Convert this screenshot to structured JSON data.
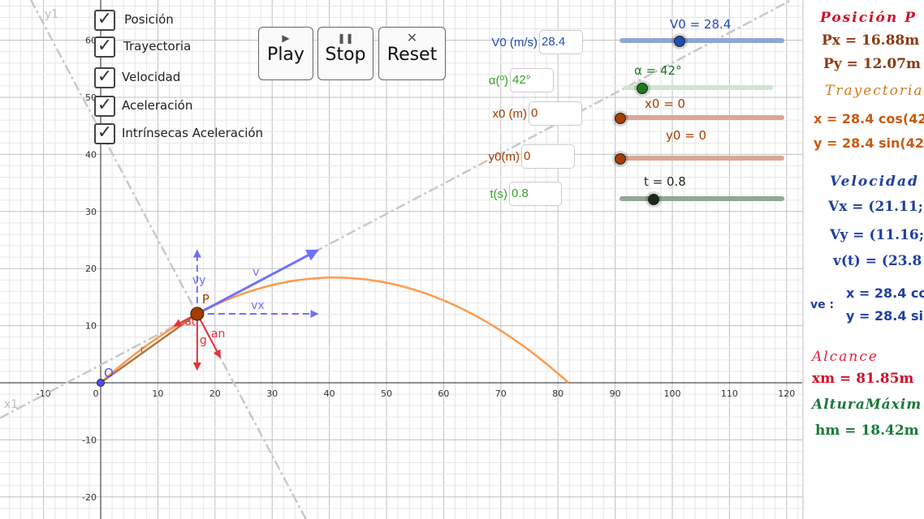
{
  "graphics": {
    "axis_x_ticks": [
      -10,
      0,
      10,
      20,
      30,
      40,
      50,
      60,
      70,
      80,
      90,
      100,
      110,
      120
    ],
    "axis_y_ticks": [
      -20,
      -10,
      10,
      20,
      30,
      40,
      50,
      60
    ],
    "origin_label": "O",
    "point_label": "P",
    "line_labels": {
      "tangent": "y1",
      "normal": "x1"
    },
    "vector_labels": {
      "v": "v",
      "vx": "vx",
      "vy": "vy",
      "g": "g",
      "an": "an",
      "at": "at",
      "r": "r"
    },
    "colors": {
      "trajectory": "#ff9a4d",
      "velocity": "#7070ff",
      "accel": "#e8303a",
      "point": "#a33d00",
      "r": "#b07840",
      "origin": "#4d4dff",
      "lines": "#c8c8c8"
    },
    "g": 9.8
  },
  "checkboxes": [
    {
      "label": "Posición",
      "checked": true
    },
    {
      "label": "Trayectoria",
      "checked": true
    },
    {
      "label": "Velocidad",
      "checked": true
    },
    {
      "label": "Aceleración",
      "checked": true
    },
    {
      "label": "Intrínsecas Aceleración",
      "checked": true
    }
  ],
  "buttons": {
    "play": {
      "label": "Play",
      "icon": "play-icon"
    },
    "stop": {
      "label": "Stop",
      "icon": "pause-icon"
    },
    "reset": {
      "label": "Reset",
      "icon": "close-icon"
    }
  },
  "inputs": {
    "v0": {
      "label": "V0 (m/s)",
      "value": "28.4"
    },
    "alpha": {
      "label": "α(º)",
      "value": "42°"
    },
    "x0": {
      "label": "x0 (m)",
      "value": "0"
    },
    "y0": {
      "label": "y0(m)",
      "value": "0"
    },
    "t": {
      "label": "t(s)",
      "value": "0.8"
    }
  },
  "sliders": {
    "v0": {
      "label": "V0 = 28.4",
      "value": 28.4,
      "fraction": 0.36,
      "color": "#1f4fb0"
    },
    "alpha": {
      "label": "α = 42°",
      "value": 42,
      "fraction": 0.12,
      "color": "#1a7a1a"
    },
    "x0": {
      "label": "x0 = 0",
      "value": 0,
      "fraction": 0,
      "color": "#a33d00"
    },
    "y0": {
      "label": "y0 = 0",
      "value": 0,
      "fraction": 0,
      "color": "#a33d00"
    },
    "t": {
      "label": "t = 0.8",
      "value": 0.8,
      "fraction": 0.2,
      "color": "#1a2a1a"
    }
  },
  "panel": {
    "pos_title": "Posición  P",
    "px": "Px = 16.88m",
    "py": "Py = 12.07m",
    "tray_title": "Trayectoria",
    "tray_x": "x = 28.4  cos(42",
    "tray_y": "y = 28.4  sin(42",
    "vel_title": "Velocidad",
    "vx": "Vx = (21.11; 0",
    "vy": "Vy = (11.16;",
    "vt": "v(t) = (23.8",
    "ve_label": "ve :",
    "ve_x": "x = 28.4  co",
    "ve_y": "y = 28.4  si",
    "alc_title": "Alcance",
    "xm": "xm = 81.85m",
    "alt_title": "AlturaMáxim",
    "hm": "hm = 18.42m"
  }
}
